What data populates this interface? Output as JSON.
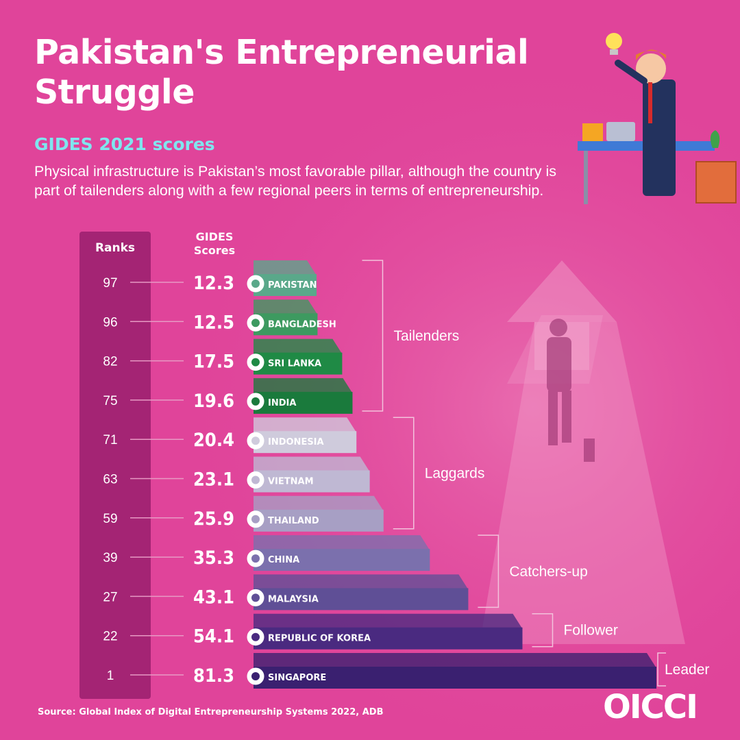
{
  "title": "Pakistan's Entrepreneurial Struggle",
  "subtitle": "GIDES 2021 scores",
  "description": "Physical infrastructure is Pakistan’s most favorable pillar, although the country is part of tailenders along with a few regional peers in terms of entrepreneurship.",
  "ranks_header": "Ranks",
  "scores_header_line1": "GIDES",
  "scores_header_line2": "Scores",
  "source": "Source: Global Index of Digital Entrepreneurship Systems 2022, ADB",
  "brand": "OICCI",
  "colors": {
    "background": "#e0449a",
    "rank_column": "#a42474",
    "tailenders": "#1f8a45",
    "laggards": "#c8c2d8",
    "catchers_up": "#6a5e9e",
    "follower": "#4a2a80",
    "leader": "#3a2070"
  },
  "chart_data": {
    "type": "bar",
    "orientation": "horizontal",
    "categories": [
      "PAKISTAN",
      "BANGLADESH",
      "SRI LANKA",
      "INDIA",
      "INDONESIA",
      "VIETNAM",
      "THAILAND",
      "CHINA",
      "MALAYSIA",
      "REPUBLIC OF KOREA",
      "SINGAPORE"
    ],
    "ranks": [
      97,
      96,
      82,
      75,
      71,
      63,
      59,
      39,
      27,
      22,
      1
    ],
    "values": [
      12.3,
      12.5,
      17.5,
      19.6,
      20.4,
      23.1,
      25.9,
      35.3,
      43.1,
      54.1,
      81.3
    ],
    "value_labels": [
      "12.3",
      "12.5",
      "17.5",
      "19.6",
      "20.4",
      "23.1",
      "25.9",
      "35.3",
      "43.1",
      "54.1",
      "81.3"
    ],
    "bar_colors": [
      "#5aa88a",
      "#3d9a60",
      "#1f8a45",
      "#1a7a3c",
      "#cfcbdc",
      "#bfb8d3",
      "#a79fc4",
      "#7b70ad",
      "#5f4f96",
      "#4a2a80",
      "#3a2070"
    ],
    "groups": [
      {
        "label": "Tailenders",
        "from": 0,
        "to": 3
      },
      {
        "label": "Laggards",
        "from": 4,
        "to": 6
      },
      {
        "label": "Catchers-up",
        "from": 7,
        "to": 8
      },
      {
        "label": "Follower",
        "from": 9,
        "to": 9
      },
      {
        "label": "Leader",
        "from": 10,
        "to": 10
      }
    ]
  }
}
